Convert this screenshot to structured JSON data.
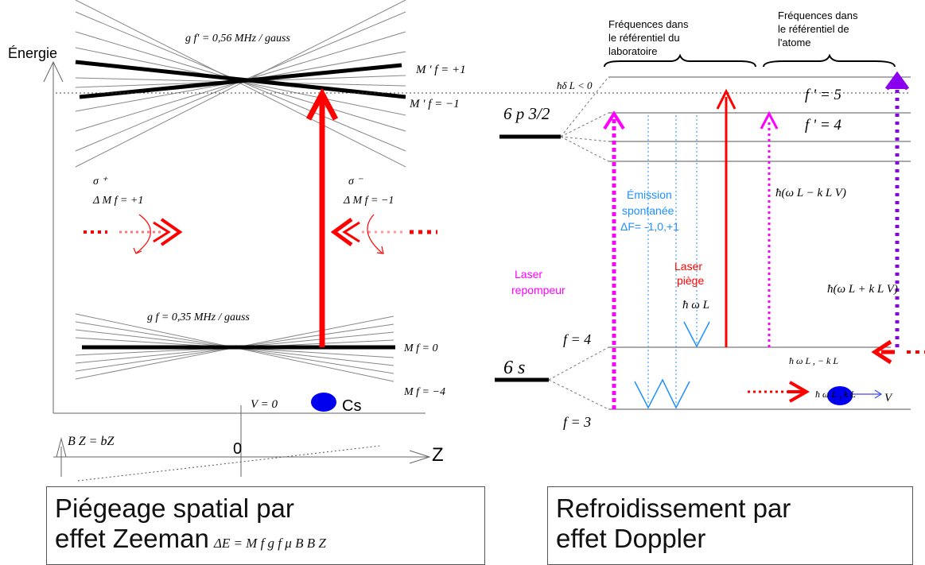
{
  "left": {
    "energy_axis_label": "Énergie",
    "excited_gfactor": "g f' = 0,56 MHz / gauss",
    "excited_levels": {
      "top": "M ' f  = +1",
      "bottom": "M ' f  = −1"
    },
    "sigma_plus": {
      "symbol": "σ ⁺",
      "rule": "Δ M  f  = +1"
    },
    "sigma_minus": {
      "symbol": "σ ⁻",
      "rule": "Δ M  f  = −1"
    },
    "ground_gfactor": "g f  = 0,35 MHz / gauss",
    "ground_levels": {
      "center": "M f  = 0",
      "bottom": "M f = −4"
    },
    "atom_velocity": "V = 0",
    "atom_label": "Cs",
    "field_label": "B Z = bZ",
    "origin_label": "0",
    "z_axis_label": "Z"
  },
  "right": {
    "lab_frequencies": "Fréquences dans le référentiel du laboratoire",
    "atom_frequencies": "Fréquences dans le référentiel de l'atome",
    "detuning": "ħδ L < 0",
    "excited_state": "6 p 3/2",
    "f_prime_5": "f ' = 5",
    "f_prime_4": "f ' = 4",
    "emission": [
      "Émission",
      "spontanée",
      "ΔF= -1,0,+1"
    ],
    "freq_minus": "ħ(ω L − k L V)",
    "freq_plus": "ħ(ω L + k L V)",
    "repumper": [
      "Laser",
      "repompeur"
    ],
    "trap_laser": [
      "Laser",
      "piège"
    ],
    "hbar_omega": "ħ ω L",
    "f_4": "f = 4",
    "f_3": "f = 3",
    "ground_state": "6 s",
    "photon_minus": "ħ ω L , − k L",
    "photon_plus": "ħ ω L , k L",
    "velocity": "V"
  },
  "captions": {
    "left_line1": "Piégeage spatial par",
    "left_line2": "effet Zeeman",
    "left_formula": "ΔE = M f g f μ B B Z",
    "right_line1": "Refroidissement par",
    "right_line2": "effet Doppler"
  },
  "colors": {
    "red": "#ff0000",
    "magenta": "#ff00ff",
    "violet": "#8a00ee",
    "blue": "#0000ee",
    "light_blue": "#1e90ff"
  }
}
